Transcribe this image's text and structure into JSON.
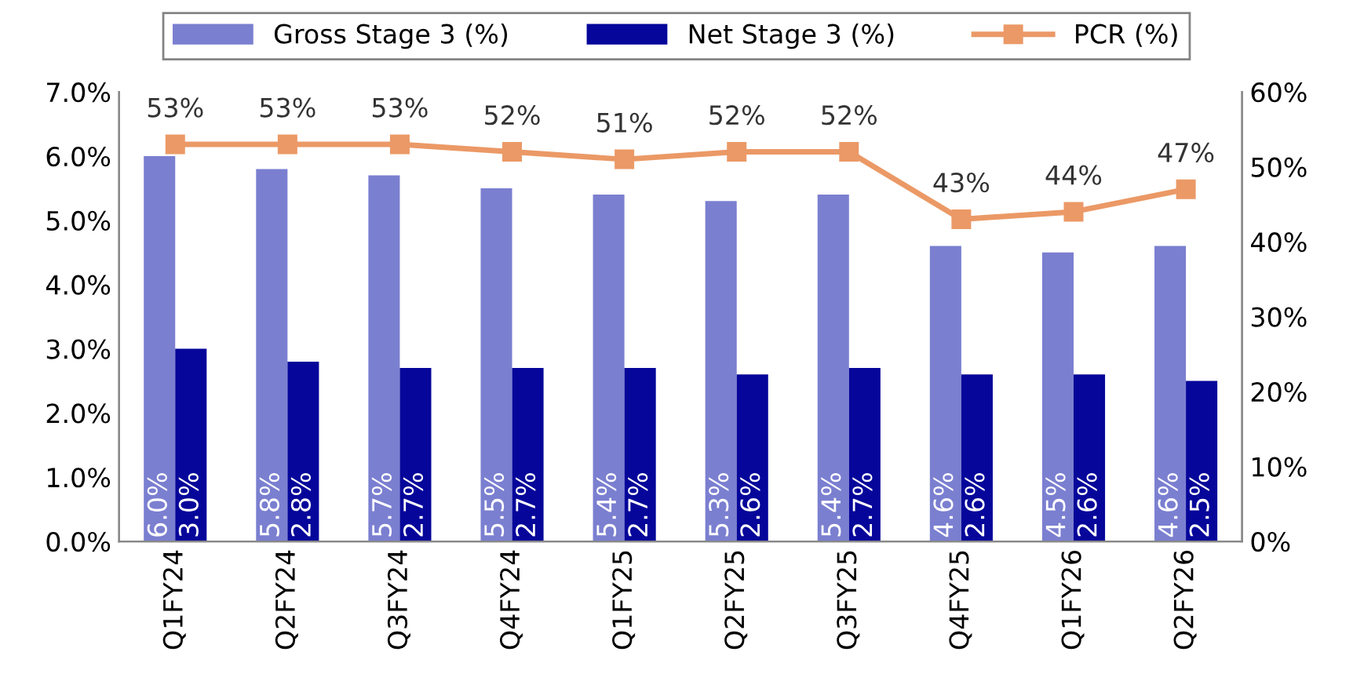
{
  "chart_data": {
    "type": "bar",
    "categories": [
      "Q1FY24",
      "Q2FY24",
      "Q3FY24",
      "Q4FY24",
      "Q1FY25",
      "Q2FY25",
      "Q3FY25",
      "Q4FY25",
      "Q1FY26",
      "Q2FY26"
    ],
    "series": [
      {
        "name": "Gross Stage 3 (%)",
        "color": "#7b7fd0",
        "values": [
          6.0,
          5.8,
          5.7,
          5.5,
          5.4,
          5.3,
          5.4,
          4.6,
          4.5,
          4.6
        ],
        "value_labels": [
          "6.0%",
          "5.8%",
          "5.7%",
          "5.5%",
          "5.4%",
          "5.3%",
          "5.4%",
          "4.6%",
          "4.5%",
          "4.6%"
        ]
      },
      {
        "name": "Net Stage 3 (%)",
        "color": "#06069a",
        "values": [
          3.0,
          2.8,
          2.7,
          2.7,
          2.7,
          2.6,
          2.7,
          2.6,
          2.6,
          2.5
        ],
        "value_labels": [
          "3.0%",
          "2.8%",
          "2.7%",
          "2.7%",
          "2.7%",
          "2.6%",
          "2.7%",
          "2.6%",
          "2.6%",
          "2.5%"
        ]
      },
      {
        "name": "PCR (%)",
        "type": "line",
        "axis": "y2",
        "color": "#eb9966",
        "marker": "square",
        "values": [
          53,
          53,
          53,
          52,
          51,
          52,
          52,
          43,
          44,
          47
        ],
        "value_labels": [
          "53%",
          "53%",
          "53%",
          "52%",
          "51%",
          "52%",
          "52%",
          "43%",
          "44%",
          "47%"
        ]
      }
    ],
    "ylim": [
      0,
      7
    ],
    "yticks": [
      {
        "value": 0,
        "label": "0.0%"
      },
      {
        "value": 1,
        "label": "1.0%"
      },
      {
        "value": 2,
        "label": "2.0%"
      },
      {
        "value": 3,
        "label": "3.0%"
      },
      {
        "value": 4,
        "label": "4.0%"
      },
      {
        "value": 5,
        "label": "5.0%"
      },
      {
        "value": 6,
        "label": "6.0%"
      },
      {
        "value": 7,
        "label": "7.0%"
      }
    ],
    "y2lim": [
      0,
      60
    ],
    "y2ticks": [
      {
        "value": 0,
        "label": "0%"
      },
      {
        "value": 10,
        "label": "10%"
      },
      {
        "value": 20,
        "label": "20%"
      },
      {
        "value": 30,
        "label": "30%"
      },
      {
        "value": 40,
        "label": "40%"
      },
      {
        "value": 50,
        "label": "50%"
      },
      {
        "value": 60,
        "label": "60%"
      }
    ],
    "grid": false,
    "legend": "top"
  }
}
